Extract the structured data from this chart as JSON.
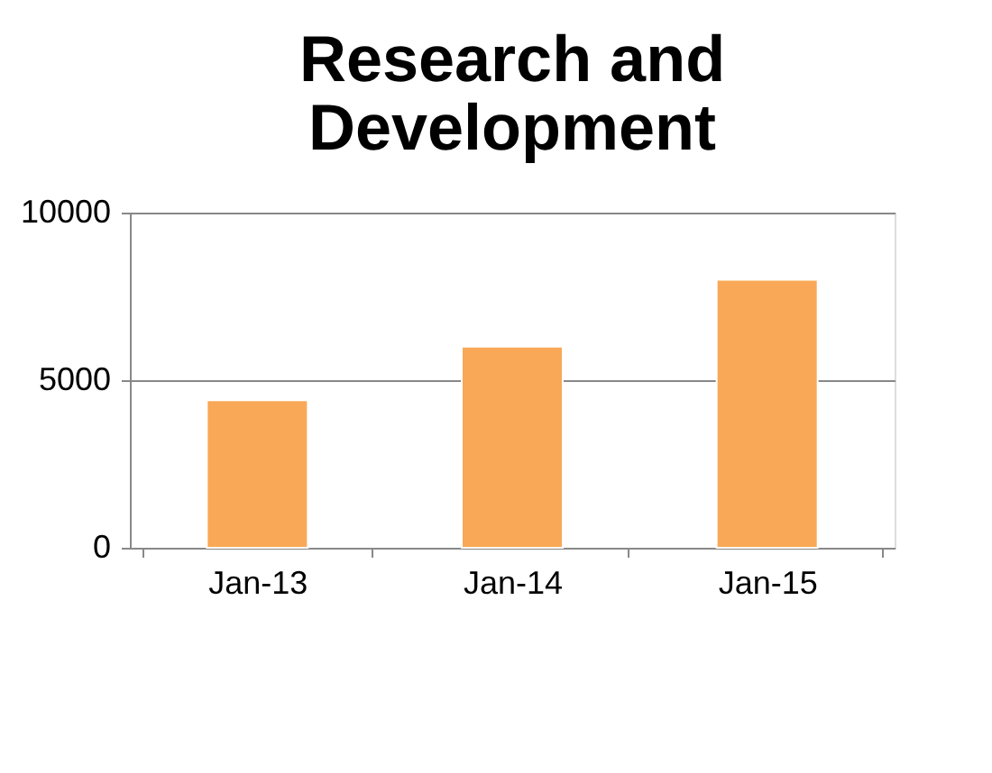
{
  "chart_data": {
    "type": "bar",
    "title": "Research and Development",
    "categories": [
      "Jan-13",
      "Jan-14",
      "Jan-15"
    ],
    "values": [
      4400,
      6000,
      8000
    ],
    "color": "#f9a857",
    "ylim": [
      0,
      10000
    ],
    "yticks": [
      0,
      5000,
      10000
    ],
    "grid": "y"
  }
}
